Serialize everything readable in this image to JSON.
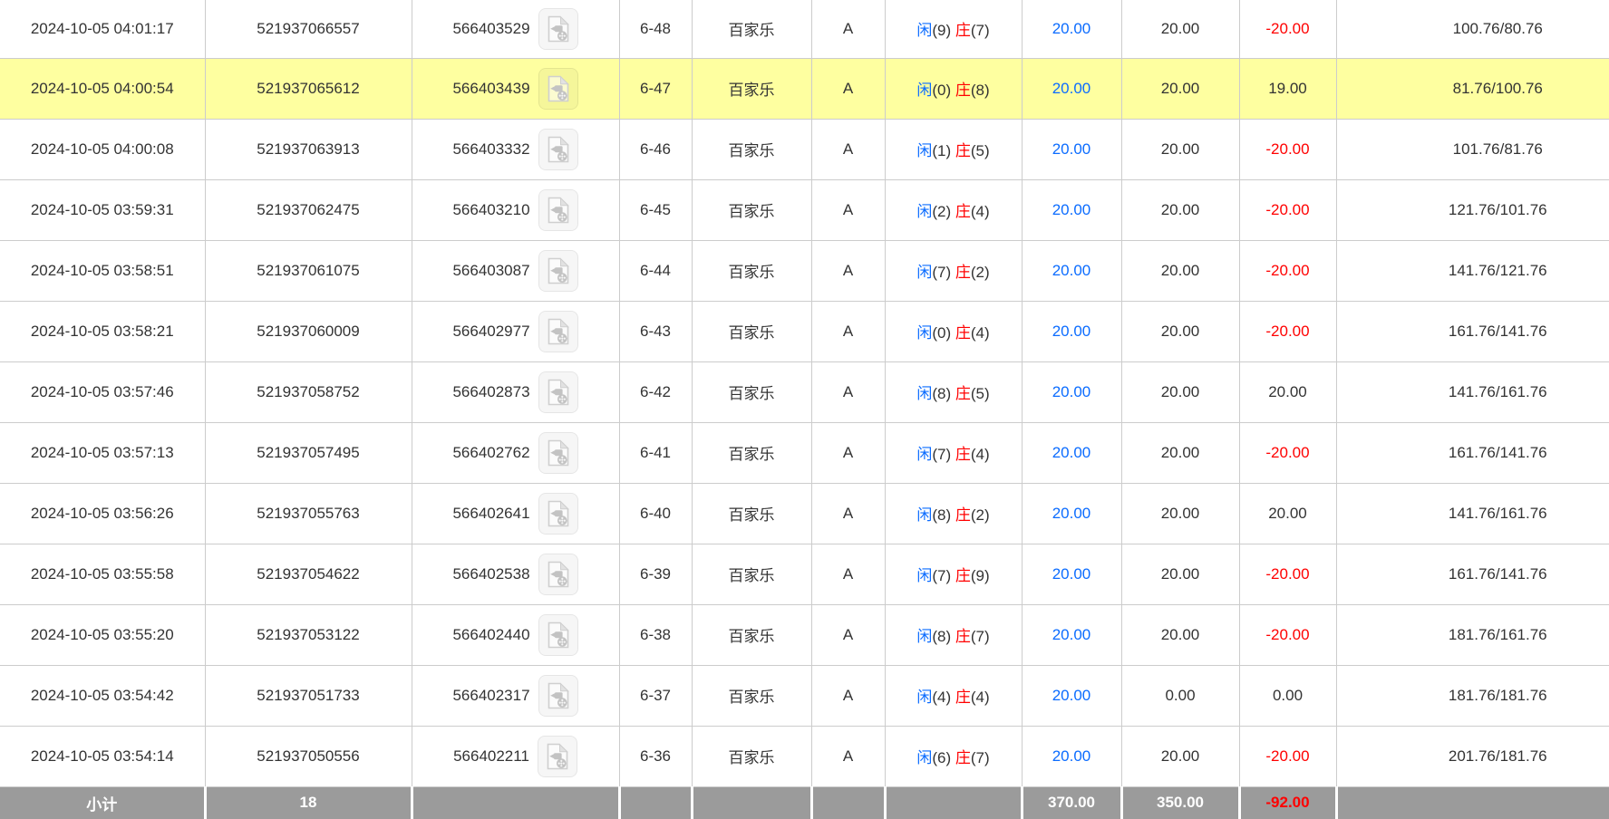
{
  "colors": {
    "highlight": "#feffa0",
    "blue": "#0b6cff",
    "red": "#ff0000",
    "subtotal_bg": "#9b9b9b",
    "border": "#cccccc"
  },
  "icons": {
    "video_replay": "video-file-icon"
  },
  "table": {
    "result_labels": {
      "player": "闲",
      "banker": "庄"
    },
    "rows": [
      {
        "time": "2024-10-05 04:01:17",
        "order_id": "521937066557",
        "game_id": "566403529",
        "round": "6-48",
        "game_type": "百家乐",
        "table": "A",
        "player": "9",
        "banker": "7",
        "bet": "20.00",
        "valid": "20.00",
        "win_loss": "-20.00",
        "balance": "100.76/80.76",
        "highlighted": false
      },
      {
        "time": "2024-10-05 04:00:54",
        "order_id": "521937065612",
        "game_id": "566403439",
        "round": "6-47",
        "game_type": "百家乐",
        "table": "A",
        "player": "0",
        "banker": "8",
        "bet": "20.00",
        "valid": "20.00",
        "win_loss": "19.00",
        "balance": "81.76/100.76",
        "highlighted": true
      },
      {
        "time": "2024-10-05 04:00:08",
        "order_id": "521937063913",
        "game_id": "566403332",
        "round": "6-46",
        "game_type": "百家乐",
        "table": "A",
        "player": "1",
        "banker": "5",
        "bet": "20.00",
        "valid": "20.00",
        "win_loss": "-20.00",
        "balance": "101.76/81.76",
        "highlighted": false
      },
      {
        "time": "2024-10-05 03:59:31",
        "order_id": "521937062475",
        "game_id": "566403210",
        "round": "6-45",
        "game_type": "百家乐",
        "table": "A",
        "player": "2",
        "banker": "4",
        "bet": "20.00",
        "valid": "20.00",
        "win_loss": "-20.00",
        "balance": "121.76/101.76",
        "highlighted": false
      },
      {
        "time": "2024-10-05 03:58:51",
        "order_id": "521937061075",
        "game_id": "566403087",
        "round": "6-44",
        "game_type": "百家乐",
        "table": "A",
        "player": "7",
        "banker": "2",
        "bet": "20.00",
        "valid": "20.00",
        "win_loss": "-20.00",
        "balance": "141.76/121.76",
        "highlighted": false
      },
      {
        "time": "2024-10-05 03:58:21",
        "order_id": "521937060009",
        "game_id": "566402977",
        "round": "6-43",
        "game_type": "百家乐",
        "table": "A",
        "player": "0",
        "banker": "4",
        "bet": "20.00",
        "valid": "20.00",
        "win_loss": "-20.00",
        "balance": "161.76/141.76",
        "highlighted": false
      },
      {
        "time": "2024-10-05 03:57:46",
        "order_id": "521937058752",
        "game_id": "566402873",
        "round": "6-42",
        "game_type": "百家乐",
        "table": "A",
        "player": "8",
        "banker": "5",
        "bet": "20.00",
        "valid": "20.00",
        "win_loss": "20.00",
        "balance": "141.76/161.76",
        "highlighted": false
      },
      {
        "time": "2024-10-05 03:57:13",
        "order_id": "521937057495",
        "game_id": "566402762",
        "round": "6-41",
        "game_type": "百家乐",
        "table": "A",
        "player": "7",
        "banker": "4",
        "bet": "20.00",
        "valid": "20.00",
        "win_loss": "-20.00",
        "balance": "161.76/141.76",
        "highlighted": false
      },
      {
        "time": "2024-10-05 03:56:26",
        "order_id": "521937055763",
        "game_id": "566402641",
        "round": "6-40",
        "game_type": "百家乐",
        "table": "A",
        "player": "8",
        "banker": "2",
        "bet": "20.00",
        "valid": "20.00",
        "win_loss": "20.00",
        "balance": "141.76/161.76",
        "highlighted": false
      },
      {
        "time": "2024-10-05 03:55:58",
        "order_id": "521937054622",
        "game_id": "566402538",
        "round": "6-39",
        "game_type": "百家乐",
        "table": "A",
        "player": "7",
        "banker": "9",
        "bet": "20.00",
        "valid": "20.00",
        "win_loss": "-20.00",
        "balance": "161.76/141.76",
        "highlighted": false
      },
      {
        "time": "2024-10-05 03:55:20",
        "order_id": "521937053122",
        "game_id": "566402440",
        "round": "6-38",
        "game_type": "百家乐",
        "table": "A",
        "player": "8",
        "banker": "7",
        "bet": "20.00",
        "valid": "20.00",
        "win_loss": "-20.00",
        "balance": "181.76/161.76",
        "highlighted": false
      },
      {
        "time": "2024-10-05 03:54:42",
        "order_id": "521937051733",
        "game_id": "566402317",
        "round": "6-37",
        "game_type": "百家乐",
        "table": "A",
        "player": "4",
        "banker": "4",
        "bet": "20.00",
        "valid": "0.00",
        "win_loss": "0.00",
        "balance": "181.76/181.76",
        "highlighted": false
      },
      {
        "time": "2024-10-05 03:54:14",
        "order_id": "521937050556",
        "game_id": "566402211",
        "round": "6-36",
        "game_type": "百家乐",
        "table": "A",
        "player": "6",
        "banker": "7",
        "bet": "20.00",
        "valid": "20.00",
        "win_loss": "-20.00",
        "balance": "201.76/181.76",
        "highlighted": false
      }
    ],
    "subtotal": {
      "label": "小计",
      "count": "18",
      "bet": "370.00",
      "valid": "350.00",
      "win_loss": "-92.00"
    }
  }
}
